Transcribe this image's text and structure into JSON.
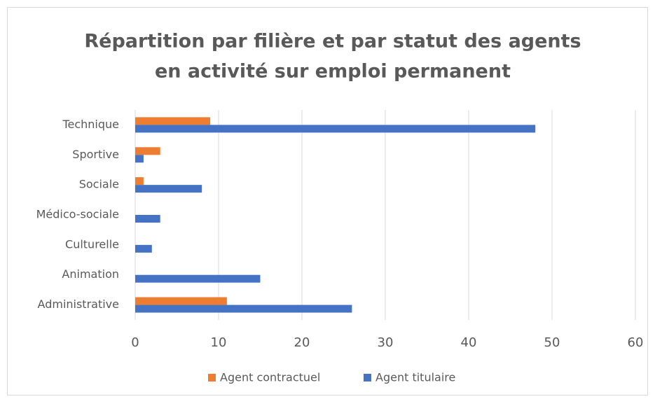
{
  "chart_data": {
    "type": "hbar",
    "title": [
      "Répartition par filière et par statut des agents",
      "en activité sur emploi permanent"
    ],
    "categories": [
      "Technique",
      "Sportive",
      "Sociale",
      "Médico-sociale",
      "Culturelle",
      "Animation",
      "Administrative"
    ],
    "series": [
      {
        "name": "Agent contractuel",
        "color": "#ed7d31",
        "values": [
          9,
          3,
          1,
          0,
          0,
          0,
          11
        ]
      },
      {
        "name": "Agent titulaire",
        "color": "#4472c4",
        "values": [
          48,
          1,
          8,
          3,
          2,
          15,
          26
        ]
      }
    ],
    "xlim": [
      0,
      60
    ],
    "xticks": [
      0,
      10,
      20,
      30,
      40,
      50,
      60
    ],
    "grid": true,
    "legend": "bottom"
  }
}
